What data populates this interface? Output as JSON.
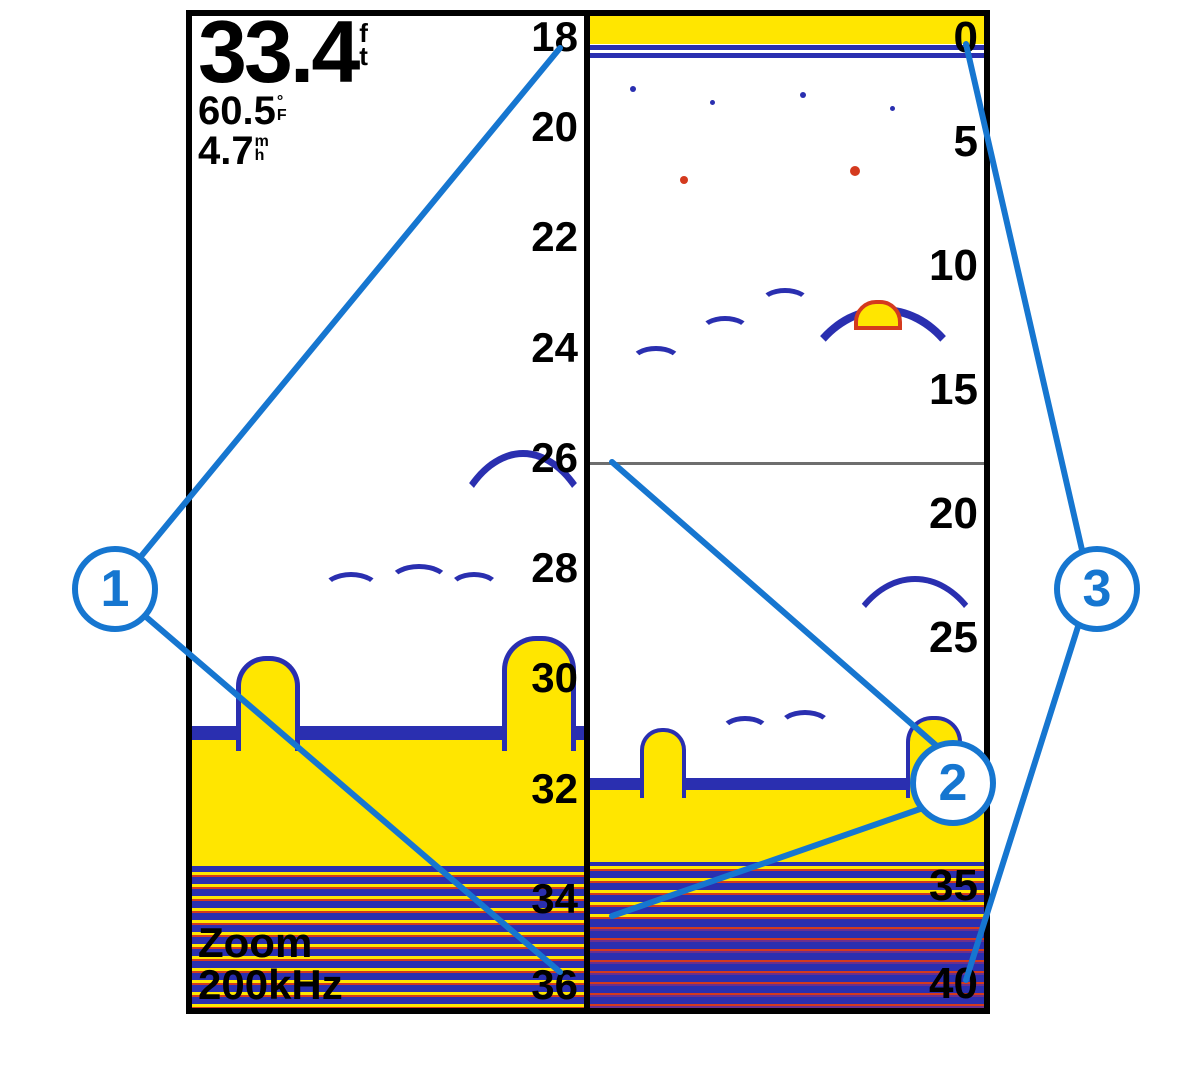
{
  "colors": {
    "accent": "#1676d0",
    "sonar_strong": "#ffe600",
    "sonar_mid": "#d43a1e",
    "sonar_weak": "#2a2fb0",
    "frame": "#000000",
    "preview_line": "#6e6e6e"
  },
  "readouts": {
    "depth": {
      "value": "33.4",
      "unit_top": "f",
      "unit_bottom": "t"
    },
    "temperature": {
      "value": "60.5",
      "unit_top": "°",
      "unit_bottom": "F"
    },
    "speed": {
      "value": "4.7",
      "unit_top": "m",
      "unit_bottom": "h"
    }
  },
  "left_pane": {
    "mode_line1": "Zoom",
    "mode_line2": "200kHz",
    "range_ft": [
      18,
      36
    ],
    "ticks": [
      18,
      20,
      22,
      24,
      26,
      28,
      30,
      32,
      34,
      36
    ],
    "tick_fontsize": 42,
    "bottom_depth_ft": 31.5
  },
  "right_pane": {
    "range_ft": [
      0,
      40
    ],
    "ticks": [
      0,
      5,
      10,
      15,
      20,
      25,
      35,
      40
    ],
    "tick_fontsize": 44,
    "preview_upper_ft": 18,
    "preview_lower_ft": 36,
    "bottom_depth_ft": 31.5
  },
  "callouts": {
    "1": {
      "label": "1",
      "targets": [
        "left-pane top tick",
        "left-pane bottom tick"
      ]
    },
    "2": {
      "label": "2",
      "targets": [
        "right-pane upper preview line",
        "right-pane lower preview line"
      ]
    },
    "3": {
      "label": "3",
      "targets": [
        "right-pane top tick",
        "right-pane bottom tick"
      ]
    }
  }
}
